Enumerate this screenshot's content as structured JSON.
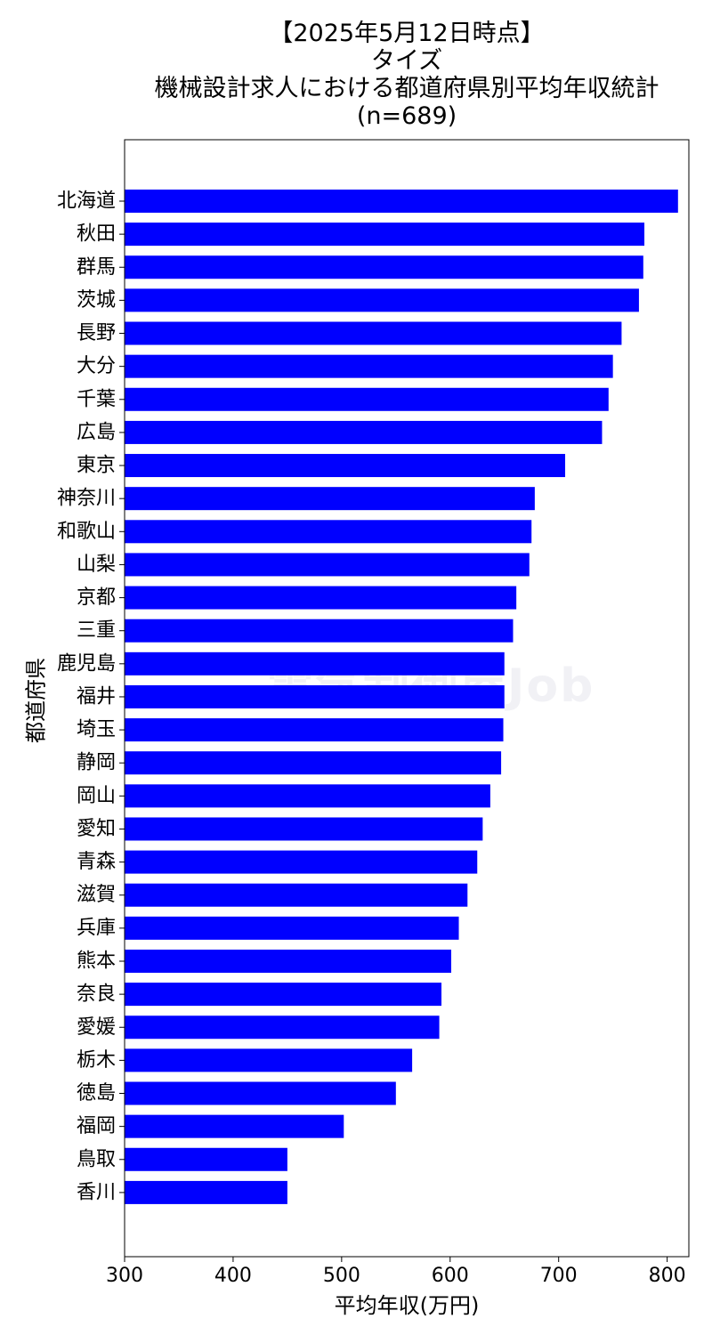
{
  "watermark": "電気制御屋Job",
  "chart_data": {
    "type": "bar",
    "orientation": "horizontal",
    "title_lines": [
      "【2025年5月12日時点】",
      "タイズ",
      "機械設計求人における都道府県別平均年収統計",
      "(n=689)"
    ],
    "xlabel": "平均年収(万円)",
    "ylabel": "都道府県",
    "xlim": [
      300,
      820
    ],
    "xticks": [
      300,
      400,
      500,
      600,
      700,
      800
    ],
    "bar_color": "#0000ff",
    "categories": [
      "北海道",
      "秋田",
      "群馬",
      "茨城",
      "長野",
      "大分",
      "千葉",
      "広島",
      "東京",
      "神奈川",
      "和歌山",
      "山梨",
      "京都",
      "三重",
      "鹿児島",
      "福井",
      "埼玉",
      "静岡",
      "岡山",
      "愛知",
      "青森",
      "滋賀",
      "兵庫",
      "熊本",
      "奈良",
      "愛媛",
      "栃木",
      "徳島",
      "福岡",
      "鳥取",
      "香川"
    ],
    "values": [
      810,
      779,
      778,
      774,
      758,
      750,
      746,
      740,
      706,
      678,
      675,
      673,
      661,
      658,
      650,
      650,
      649,
      647,
      637,
      630,
      625,
      616,
      608,
      601,
      592,
      590,
      565,
      550,
      502,
      450,
      450
    ]
  }
}
